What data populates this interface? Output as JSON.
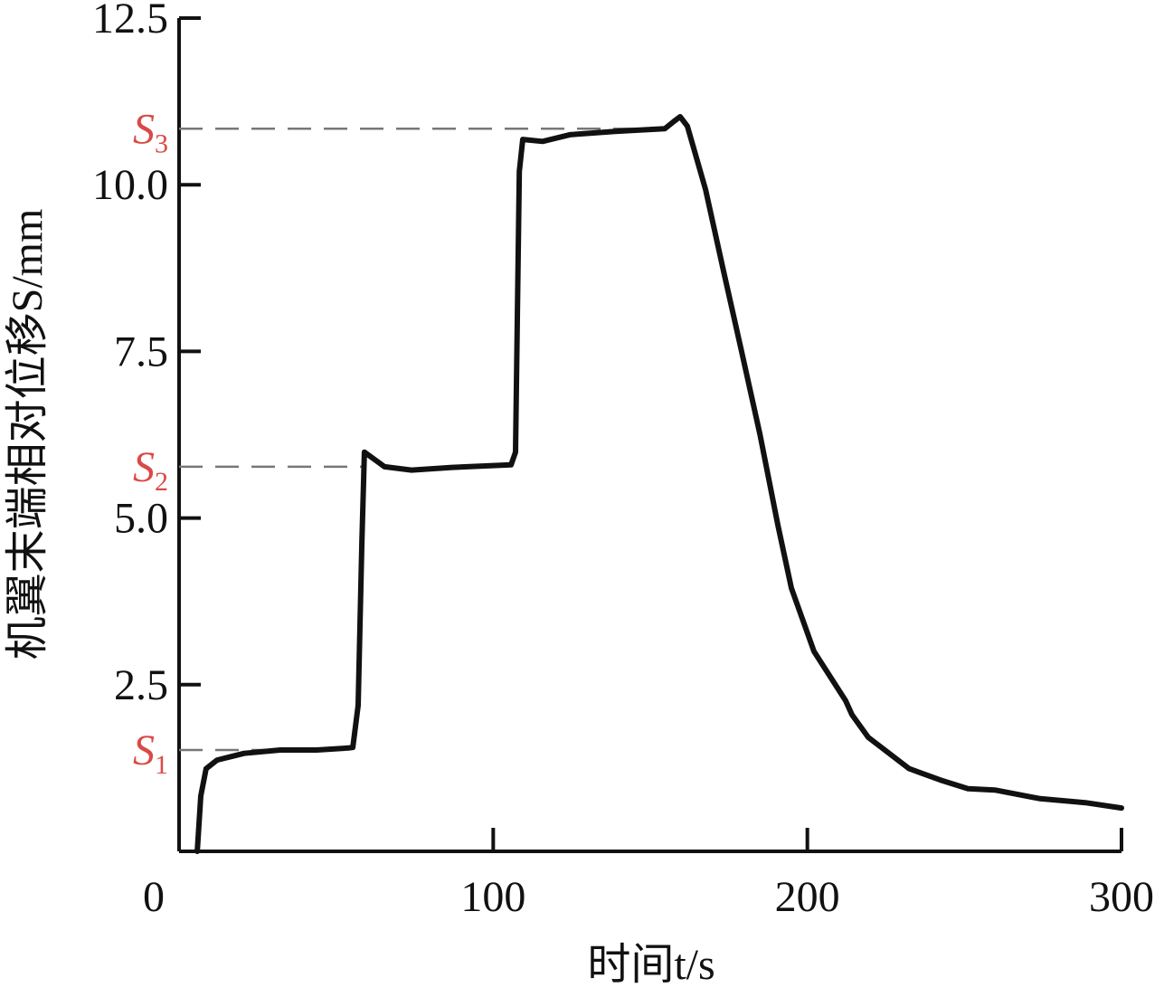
{
  "chart_data": {
    "type": "line",
    "x_label": "时间t/s",
    "y_label": "机翼末端相对位移S/mm",
    "xlim": [
      0,
      300
    ],
    "ylim": [
      0,
      12.5
    ],
    "xticks": [
      0,
      100,
      200,
      300
    ],
    "yticks": [
      {
        "value": 2.5,
        "label": "2.5"
      },
      {
        "value": 5.0,
        "label": "5.0"
      },
      {
        "value": 7.5,
        "label": "7.5"
      },
      {
        "value": 10.0,
        "label": "10.0"
      },
      {
        "value": 12.5,
        "label": "12.5"
      }
    ],
    "series": [
      {
        "color": "#111111",
        "x": [
          5.8,
          6.9,
          8.6,
          12.1,
          20.7,
          32.2,
          43.8,
          53.8,
          55.3,
          57.0,
          58.2,
          59.0,
          61.0,
          65.4,
          74.0,
          87.0,
          105.7,
          107.1,
          108.3,
          109.4,
          115.7,
          124.4,
          138.8,
          154.6,
          157.5,
          159.5,
          161.8,
          167.6,
          173.3,
          179.1,
          184.9,
          190.6,
          194.9,
          202.1,
          212.2,
          214.2,
          219.4,
          232.4,
          242.4,
          251.1,
          259.7,
          274.1,
          288.5,
          300
        ],
        "values": [
          0,
          0.83,
          1.24,
          1.37,
          1.47,
          1.52,
          1.52,
          1.55,
          1.56,
          2.19,
          4.63,
          5.99,
          5.92,
          5.77,
          5.72,
          5.76,
          5.8,
          5.99,
          10.2,
          10.68,
          10.65,
          10.75,
          10.8,
          10.84,
          10.95,
          11.02,
          10.88,
          9.93,
          8.71,
          7.49,
          6.26,
          4.9,
          3.95,
          3.0,
          2.26,
          2.05,
          1.71,
          1.24,
          1.07,
          0.94,
          0.92,
          0.79,
          0.73,
          0.65
        ]
      }
    ],
    "reference_lines": [
      {
        "symbol": "S",
        "subscript": "1",
        "value": 1.52,
        "color": "#d94a46"
      },
      {
        "symbol": "S",
        "subscript": "2",
        "value": 5.77,
        "color": "#d94a46"
      },
      {
        "symbol": "S",
        "subscript": "3",
        "value": 10.84,
        "color": "#d94a46"
      }
    ]
  }
}
